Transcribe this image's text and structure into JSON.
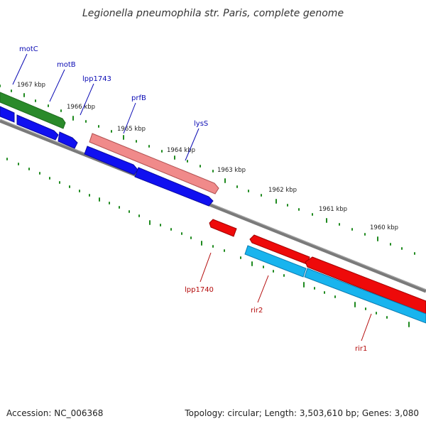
{
  "title": "Legionella pneumophila str. Paris, complete genome",
  "footer": {
    "accession": "Accession: NC_006368",
    "summary": "Topology: circular; Length: 3,503,610 bp; Genes: 3,080"
  },
  "ticks": [
    "1967 kbp",
    "1966 kbp",
    "1965 kbp",
    "1964 kbp",
    "1963 kbp",
    "1962 kbp",
    "1961 kbp",
    "1960 kbp"
  ],
  "genes_forward": [
    "motC",
    "motB",
    "lpp1743",
    "prfB",
    "lysS"
  ],
  "genes_reverse": [
    "lpp1740",
    "rir2",
    "rir1"
  ],
  "colors": {
    "backbone": "#7a7a7a",
    "tick": "#1f8a1f",
    "green_gene": "#2a8a2a",
    "blue_gene": "#1010f0",
    "pink_gene": "#f08a8a",
    "red_gene": "#ee0a0a",
    "cyan_gene": "#18b4ee"
  }
}
